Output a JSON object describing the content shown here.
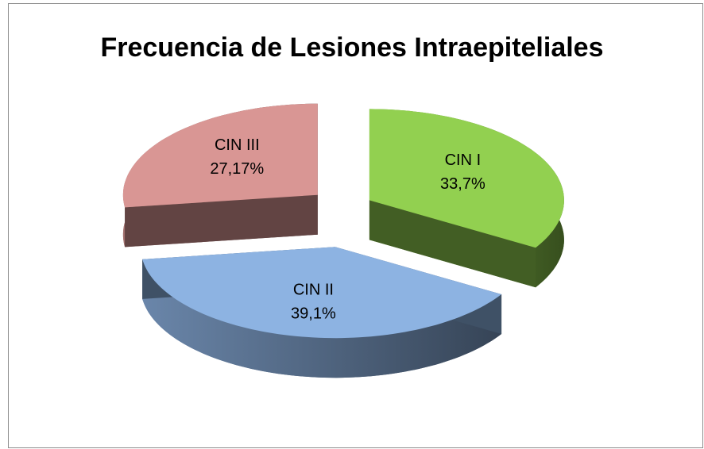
{
  "chart_data": {
    "type": "pie",
    "title": "Frecuencia de Lesiones Intraepiteliales",
    "categories": [
      "CIN I",
      "CIN II",
      "CIN III"
    ],
    "values": [
      33.7,
      39.1,
      27.17
    ],
    "value_labels": [
      "33,7%",
      "39,1%",
      "27,17%"
    ],
    "colors": [
      "#92d050",
      "#8db3e2",
      "#d99694"
    ]
  }
}
